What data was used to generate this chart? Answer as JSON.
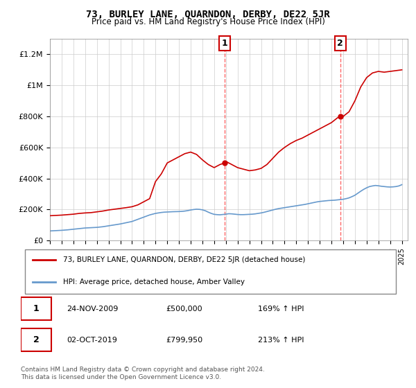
{
  "title": "73, BURLEY LANE, QUARNDON, DERBY, DE22 5JR",
  "subtitle": "Price paid vs. HM Land Registry's House Price Index (HPI)",
  "footer1": "Contains HM Land Registry data © Crown copyright and database right 2024.",
  "footer2": "This data is licensed under the Open Government Licence v3.0.",
  "legend_property": "73, BURLEY LANE, QUARNDON, DERBY, DE22 5JR (detached house)",
  "legend_hpi": "HPI: Average price, detached house, Amber Valley",
  "property_color": "#cc0000",
  "hpi_color": "#6699cc",
  "sale1_label": "1",
  "sale1_date": "24-NOV-2009",
  "sale1_price": 500000,
  "sale1_pct": "169% ↑ HPI",
  "sale2_label": "2",
  "sale2_date": "02-OCT-2019",
  "sale2_price": 799950,
  "sale2_pct": "213% ↑ HPI",
  "ylim": [
    0,
    1300000
  ],
  "yticks": [
    0,
    200000,
    400000,
    600000,
    800000,
    1000000,
    1200000
  ],
  "ytick_labels": [
    "£0",
    "£200K",
    "£400K",
    "£600K",
    "£800K",
    "£1M",
    "£1.2M"
  ],
  "sale1_year": 2009.9,
  "sale2_year": 2019.75,
  "hpi_years": [
    1995,
    1995.25,
    1995.5,
    1995.75,
    1996,
    1996.25,
    1996.5,
    1996.75,
    1997,
    1997.25,
    1997.5,
    1997.75,
    1998,
    1998.25,
    1998.5,
    1998.75,
    1999,
    1999.25,
    1999.5,
    1999.75,
    2000,
    2000.25,
    2000.5,
    2000.75,
    2001,
    2001.25,
    2001.5,
    2001.75,
    2002,
    2002.25,
    2002.5,
    2002.75,
    2003,
    2003.25,
    2003.5,
    2003.75,
    2004,
    2004.25,
    2004.5,
    2004.75,
    2005,
    2005.25,
    2005.5,
    2005.75,
    2006,
    2006.25,
    2006.5,
    2006.75,
    2007,
    2007.25,
    2007.5,
    2007.75,
    2008,
    2008.25,
    2008.5,
    2008.75,
    2009,
    2009.25,
    2009.5,
    2009.75,
    2010,
    2010.25,
    2010.5,
    2010.75,
    2011,
    2011.25,
    2011.5,
    2011.75,
    2012,
    2012.25,
    2012.5,
    2012.75,
    2013,
    2013.25,
    2013.5,
    2013.75,
    2014,
    2014.25,
    2014.5,
    2014.75,
    2015,
    2015.25,
    2015.5,
    2015.75,
    2016,
    2016.25,
    2016.5,
    2016.75,
    2017,
    2017.25,
    2017.5,
    2017.75,
    2018,
    2018.25,
    2018.5,
    2018.75,
    2019,
    2019.25,
    2019.5,
    2019.75,
    2020,
    2020.25,
    2020.5,
    2020.75,
    2021,
    2021.25,
    2021.5,
    2021.75,
    2022,
    2022.25,
    2022.5,
    2022.75,
    2023,
    2023.25,
    2023.5,
    2023.75,
    2024,
    2024.25,
    2024.5,
    2024.75,
    2025
  ],
  "hpi_values": [
    62000,
    63000,
    64000,
    65000,
    66000,
    67500,
    69000,
    71000,
    73000,
    75000,
    77000,
    79000,
    81000,
    82000,
    83000,
    84000,
    85000,
    87000,
    89000,
    92000,
    95000,
    98000,
    101000,
    104000,
    107000,
    111000,
    115000,
    119000,
    123000,
    130000,
    137000,
    144000,
    151000,
    158000,
    165000,
    170000,
    175000,
    178000,
    181000,
    183000,
    184000,
    185000,
    186000,
    186500,
    187000,
    188000,
    190000,
    193000,
    197000,
    200000,
    202000,
    201000,
    198000,
    192000,
    183000,
    175000,
    169000,
    167000,
    166000,
    168000,
    170000,
    173000,
    172000,
    170000,
    168000,
    167000,
    167000,
    168000,
    169000,
    170000,
    172000,
    175000,
    178000,
    182000,
    187000,
    192000,
    197000,
    202000,
    206000,
    209000,
    212000,
    215000,
    218000,
    221000,
    224000,
    227000,
    230000,
    233000,
    237000,
    241000,
    245000,
    249000,
    252000,
    254000,
    256000,
    258000,
    259000,
    260000,
    262000,
    264000,
    266000,
    270000,
    275000,
    283000,
    292000,
    305000,
    318000,
    330000,
    340000,
    348000,
    352000,
    355000,
    353000,
    350000,
    348000,
    346000,
    345000,
    346000,
    348000,
    352000,
    360000
  ],
  "prop_years": [
    1995,
    1995.5,
    1996,
    1996.5,
    1997,
    1997.5,
    1998,
    1998.5,
    1999,
    1999.5,
    2000,
    2000.5,
    2001,
    2001.5,
    2002,
    2002.5,
    2003,
    2003.5,
    2004,
    2004.5,
    2005,
    2005.5,
    2006,
    2006.5,
    2007,
    2007.5,
    2008,
    2008.5,
    2009,
    2009.5,
    2009.9,
    2010,
    2010.5,
    2011,
    2011.5,
    2012,
    2012.5,
    2013,
    2013.5,
    2014,
    2014.5,
    2015,
    2015.5,
    2016,
    2016.5,
    2017,
    2017.5,
    2018,
    2018.5,
    2019,
    2019.5,
    2019.75,
    2020,
    2020.5,
    2021,
    2021.5,
    2022,
    2022.5,
    2023,
    2023.5,
    2024,
    2024.5,
    2025
  ],
  "prop_values": [
    160000,
    162000,
    164000,
    167000,
    170000,
    175000,
    178000,
    180000,
    185000,
    190000,
    197000,
    202000,
    207000,
    212000,
    218000,
    230000,
    250000,
    270000,
    380000,
    430000,
    500000,
    520000,
    540000,
    560000,
    570000,
    555000,
    520000,
    490000,
    470000,
    490000,
    500000,
    510000,
    490000,
    470000,
    460000,
    450000,
    455000,
    465000,
    490000,
    530000,
    570000,
    600000,
    625000,
    645000,
    660000,
    680000,
    700000,
    720000,
    740000,
    760000,
    790000,
    799950,
    800000,
    830000,
    900000,
    990000,
    1050000,
    1080000,
    1090000,
    1085000,
    1090000,
    1095000,
    1100000
  ],
  "background_color": "#ffffff",
  "grid_color": "#cccccc",
  "vline_color": "#ff4444"
}
